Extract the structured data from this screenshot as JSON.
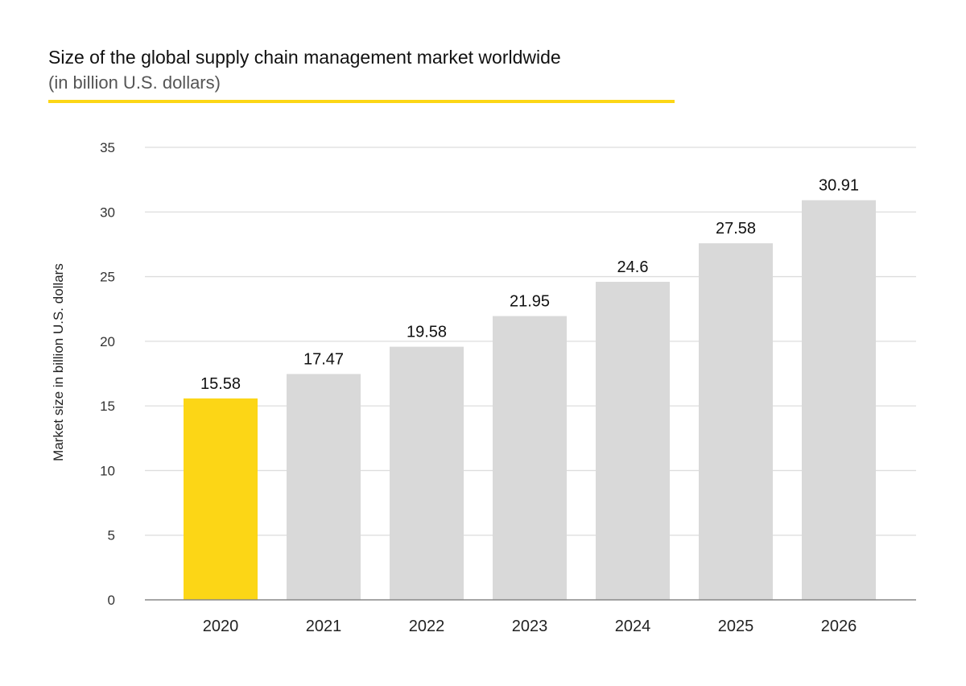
{
  "chart_data": {
    "type": "bar",
    "title": "Size of the global supply chain management market worldwide",
    "subtitle": "(in billion U.S. dollars)",
    "xlabel": "",
    "ylabel": "Market size in billion U.S. dollars",
    "categories": [
      "2020",
      "2021",
      "2022",
      "2023",
      "2024",
      "2025",
      "2026"
    ],
    "values": [
      15.58,
      17.47,
      19.58,
      21.95,
      24.6,
      27.58,
      30.91
    ],
    "data_labels": [
      "15.58",
      "17.47",
      "19.58",
      "21.95",
      "24.6",
      "27.58",
      "30.91"
    ],
    "ylim": [
      0,
      35
    ],
    "yticks": [
      0,
      5,
      10,
      15,
      20,
      25,
      30,
      35
    ],
    "grid": true,
    "legend": "none",
    "highlight_index": 0,
    "colors": {
      "highlight": "#FCD616",
      "bar": "#D9D9D9",
      "accent_rule": "#FCD616",
      "grid": "#DDDDDD",
      "axis": "#888888"
    }
  }
}
